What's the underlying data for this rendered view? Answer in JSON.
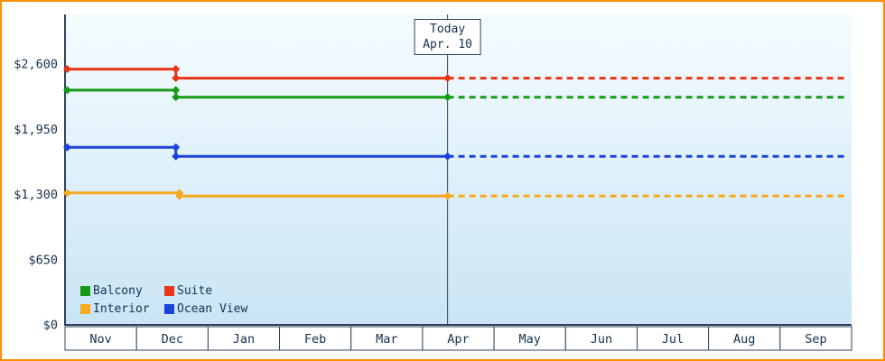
{
  "window": {
    "border_color": "#ff8d00",
    "background": "#ffffff"
  },
  "chart_data": {
    "type": "line",
    "title": "",
    "xlabel": "",
    "ylabel": "",
    "y_ticks": [
      {
        "label": "$0",
        "value": 0
      },
      {
        "label": "$650",
        "value": 650
      },
      {
        "label": "$1,300",
        "value": 1300
      },
      {
        "label": "$1,950",
        "value": 1950
      },
      {
        "label": "$2,600",
        "value": 2600
      }
    ],
    "ylim": [
      0,
      3100
    ],
    "x_months": [
      "Nov",
      "Dec",
      "Jan",
      "Feb",
      "Mar",
      "Apr",
      "May",
      "Jun",
      "Jul",
      "Aug",
      "Sep"
    ],
    "today": {
      "label": "Today",
      "date": "Apr. 10",
      "x_month_units": 5.35
    },
    "series": [
      {
        "name": "Suite",
        "color": "#ea3517",
        "points": [
          {
            "x": 0,
            "price": 2550
          },
          {
            "x": 1.55,
            "price": 2550
          },
          {
            "x": 1.55,
            "price": 2460
          },
          {
            "x": 5.35,
            "price": 2460
          }
        ],
        "projected_price": 2460,
        "projected_style": "dashed"
      },
      {
        "name": "Balcony",
        "color": "#149b14",
        "points": [
          {
            "x": 0,
            "price": 2340
          },
          {
            "x": 1.55,
            "price": 2340
          },
          {
            "x": 1.55,
            "price": 2270
          },
          {
            "x": 5.35,
            "price": 2270
          }
        ],
        "projected_price": 2270,
        "projected_style": "dashed"
      },
      {
        "name": "Ocean View",
        "color": "#1c43d8",
        "points": [
          {
            "x": 0,
            "price": 1770
          },
          {
            "x": 1.55,
            "price": 1770
          },
          {
            "x": 1.55,
            "price": 1680
          },
          {
            "x": 5.35,
            "price": 1680
          }
        ],
        "projected_price": 1680,
        "projected_style": "dashed"
      },
      {
        "name": "Interior",
        "color": "#f7a81b",
        "points": [
          {
            "x": 0,
            "price": 1315
          },
          {
            "x": 1.6,
            "price": 1315
          },
          {
            "x": 1.6,
            "price": 1285
          },
          {
            "x": 5.35,
            "price": 1285
          }
        ],
        "projected_price": 1285,
        "projected_style": "dashed"
      }
    ],
    "legend_items": [
      {
        "label": "Balcony",
        "color": "#149b14"
      },
      {
        "label": "Suite",
        "color": "#ea3517"
      },
      {
        "label": "Interior",
        "color": "#f7a81b"
      },
      {
        "label": "Ocean View",
        "color": "#1c43d8"
      }
    ],
    "legend_position": "bottom-left",
    "grid": false,
    "plot_background": {
      "top": "#f5fcff",
      "bottom": "#c9e5f5"
    },
    "axis_color": "#31435e",
    "text_color": "#16324f"
  }
}
